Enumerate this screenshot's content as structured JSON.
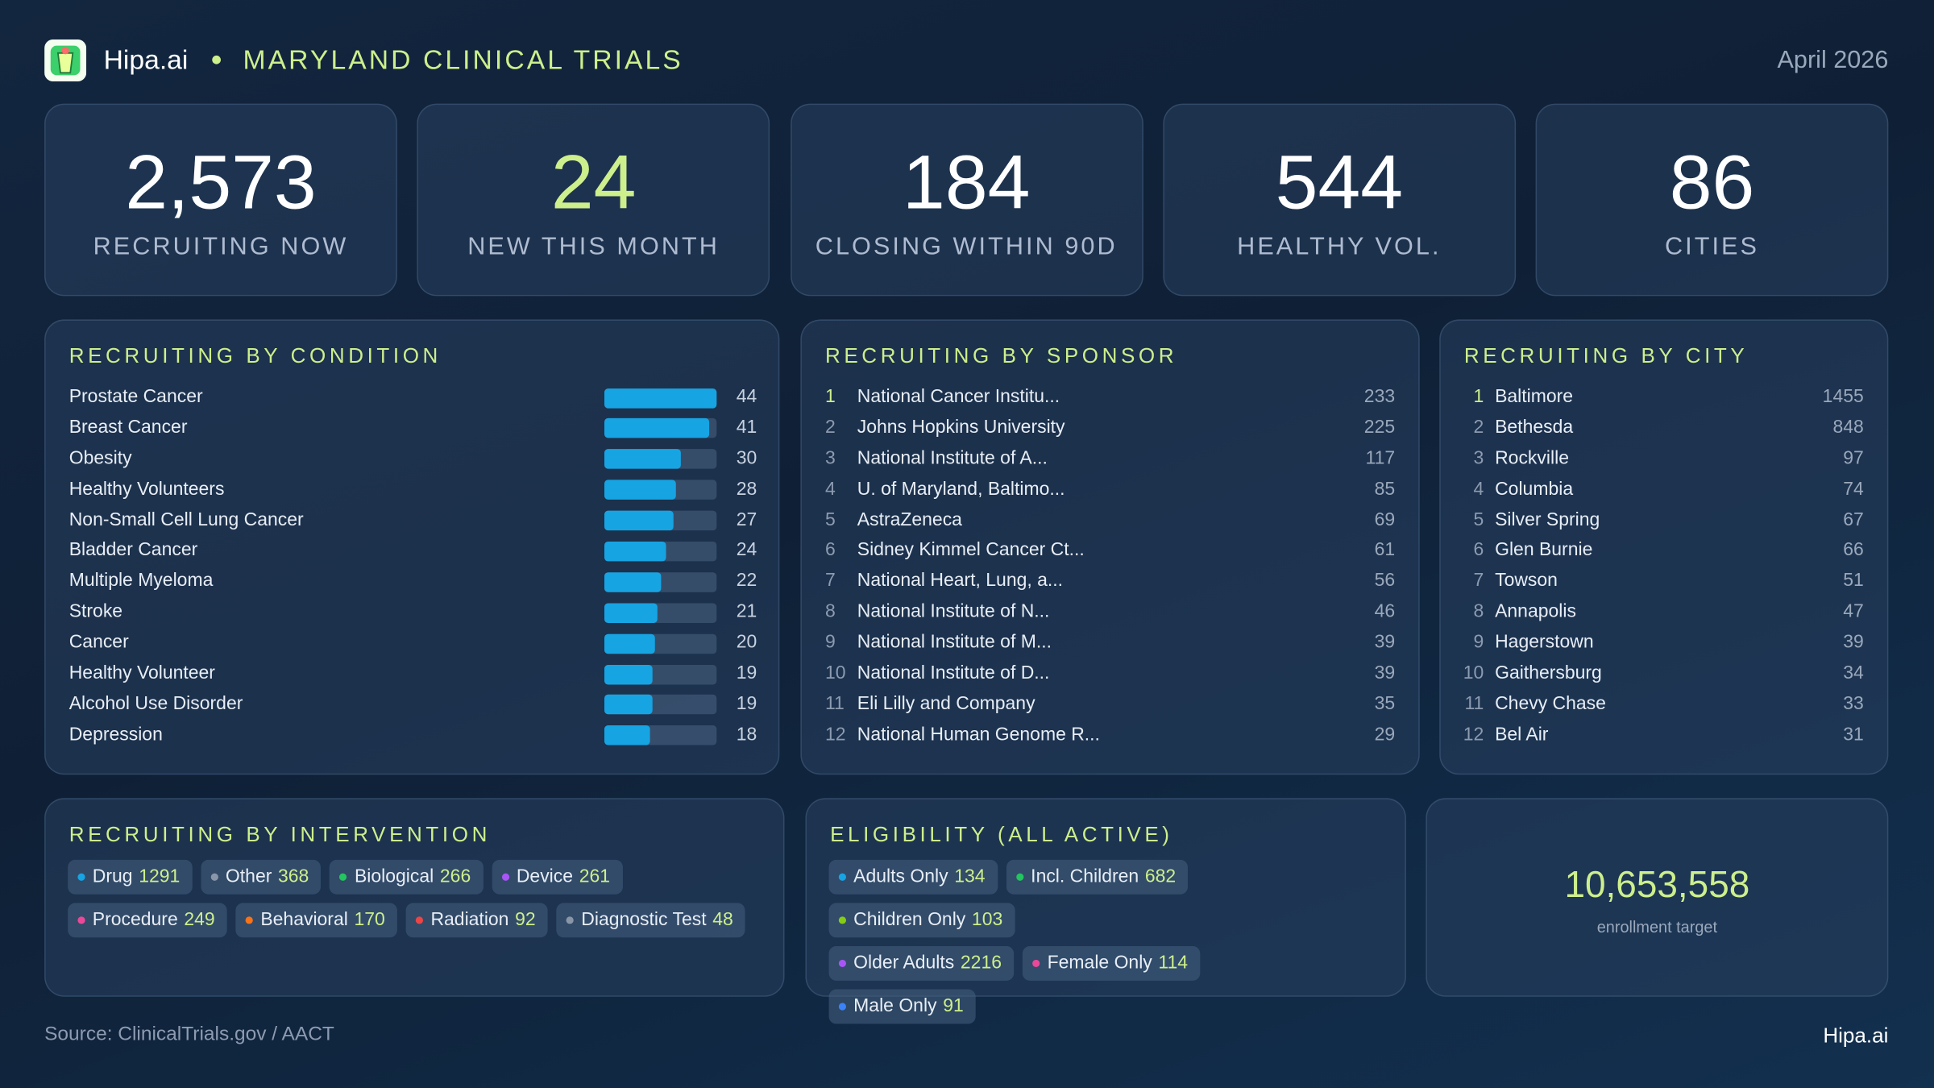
{
  "header": {
    "brand": "Hipa.ai",
    "title": "MARYLAND CLINICAL TRIALS",
    "date": "April 2026"
  },
  "kpis": [
    {
      "value": "2,573",
      "label": "RECRUITING NOW",
      "color": "#ffffff"
    },
    {
      "value": "24",
      "label": "NEW THIS MONTH",
      "color": "#cdef8c"
    },
    {
      "value": "184",
      "label": "CLOSING WITHIN 90D",
      "color": "#ffffff"
    },
    {
      "value": "544",
      "label": "HEALTHY VOL.",
      "color": "#ffffff"
    },
    {
      "value": "86",
      "label": "CITIES",
      "color": "#ffffff"
    }
  ],
  "conditions": {
    "title": "RECRUITING BY CONDITION",
    "color": "#17a4e3",
    "rows": [
      {
        "name": "Prostate Cancer",
        "value": 44
      },
      {
        "name": "Breast Cancer",
        "value": 41
      },
      {
        "name": "Obesity",
        "value": 30
      },
      {
        "name": "Healthy Volunteers",
        "value": 28
      },
      {
        "name": "Non-Small Cell Lung Cancer",
        "value": 27
      },
      {
        "name": "Bladder Cancer",
        "value": 24
      },
      {
        "name": "Multiple Myeloma",
        "value": 22
      },
      {
        "name": "Stroke",
        "value": 21
      },
      {
        "name": "Cancer",
        "value": 20
      },
      {
        "name": "Healthy Volunteer",
        "value": 19
      },
      {
        "name": "Alcohol Use Disorder",
        "value": 19
      },
      {
        "name": "Depression",
        "value": 18
      }
    ]
  },
  "sponsors": {
    "title": "RECRUITING BY SPONSOR",
    "rows": [
      {
        "rank": 1,
        "name": "National Cancer Institu...",
        "count": 233
      },
      {
        "rank": 2,
        "name": "Johns Hopkins University",
        "count": 225
      },
      {
        "rank": 3,
        "name": "National Institute of A...",
        "count": 117
      },
      {
        "rank": 4,
        "name": "U. of Maryland, Baltimo...",
        "count": 85
      },
      {
        "rank": 5,
        "name": "AstraZeneca",
        "count": 69
      },
      {
        "rank": 6,
        "name": "Sidney Kimmel Cancer Ct...",
        "count": 61
      },
      {
        "rank": 7,
        "name": "National Heart, Lung, a...",
        "count": 56
      },
      {
        "rank": 8,
        "name": "National Institute of N...",
        "count": 46
      },
      {
        "rank": 9,
        "name": "National Institute of M...",
        "count": 39
      },
      {
        "rank": 10,
        "name": "National Institute of D...",
        "count": 39
      },
      {
        "rank": 11,
        "name": "Eli Lilly and Company",
        "count": 35
      },
      {
        "rank": 12,
        "name": "National Human Genome R...",
        "count": 29
      }
    ]
  },
  "cities": {
    "title": "RECRUITING BY CITY",
    "rows": [
      {
        "rank": 1,
        "name": "Baltimore",
        "count": 1455
      },
      {
        "rank": 2,
        "name": "Bethesda",
        "count": 848
      },
      {
        "rank": 3,
        "name": "Rockville",
        "count": 97
      },
      {
        "rank": 4,
        "name": "Columbia",
        "count": 74
      },
      {
        "rank": 5,
        "name": "Silver Spring",
        "count": 67
      },
      {
        "rank": 6,
        "name": "Glen Burnie",
        "count": 66
      },
      {
        "rank": 7,
        "name": "Towson",
        "count": 51
      },
      {
        "rank": 8,
        "name": "Annapolis",
        "count": 47
      },
      {
        "rank": 9,
        "name": "Hagerstown",
        "count": 39
      },
      {
        "rank": 10,
        "name": "Gaithersburg",
        "count": 34
      },
      {
        "rank": 11,
        "name": "Chevy Chase",
        "count": 33
      },
      {
        "rank": 12,
        "name": "Bel Air",
        "count": 31
      }
    ]
  },
  "interventions": {
    "title": "RECRUITING BY INTERVENTION",
    "items": [
      {
        "name": "Drug",
        "count": 1291,
        "color": "#17a4e3"
      },
      {
        "name": "Other",
        "count": 368,
        "color": "#8a96a8"
      },
      {
        "name": "Biological",
        "count": 266,
        "color": "#22c55e"
      },
      {
        "name": "Device",
        "count": 261,
        "color": "#a855f7"
      },
      {
        "name": "Procedure",
        "count": 249,
        "color": "#ec4899"
      },
      {
        "name": "Behavioral",
        "count": 170,
        "color": "#f97316"
      },
      {
        "name": "Radiation",
        "count": 92,
        "color": "#ef4444"
      },
      {
        "name": "Diagnostic Test",
        "count": 48,
        "color": "#8a96a8"
      }
    ]
  },
  "eligibility": {
    "title": "ELIGIBILITY (ALL ACTIVE)",
    "items": [
      {
        "name": "Adults Only",
        "count": 134,
        "color": "#17a4e3"
      },
      {
        "name": "Incl. Children",
        "count": 682,
        "color": "#22c55e"
      },
      {
        "name": "Children Only",
        "count": 103,
        "color": "#84cc16"
      },
      {
        "name": "Older Adults",
        "count": 2216,
        "color": "#a855f7"
      },
      {
        "name": "Female Only",
        "count": 114,
        "color": "#ec4899"
      },
      {
        "name": "Male Only",
        "count": 91,
        "color": "#3b82f6"
      }
    ]
  },
  "enrollment": {
    "value": "10,653,558",
    "label": "enrollment target"
  },
  "footer": {
    "source": "Source: ClinicalTrials.gov / AACT",
    "brand": "Hipa.ai"
  }
}
